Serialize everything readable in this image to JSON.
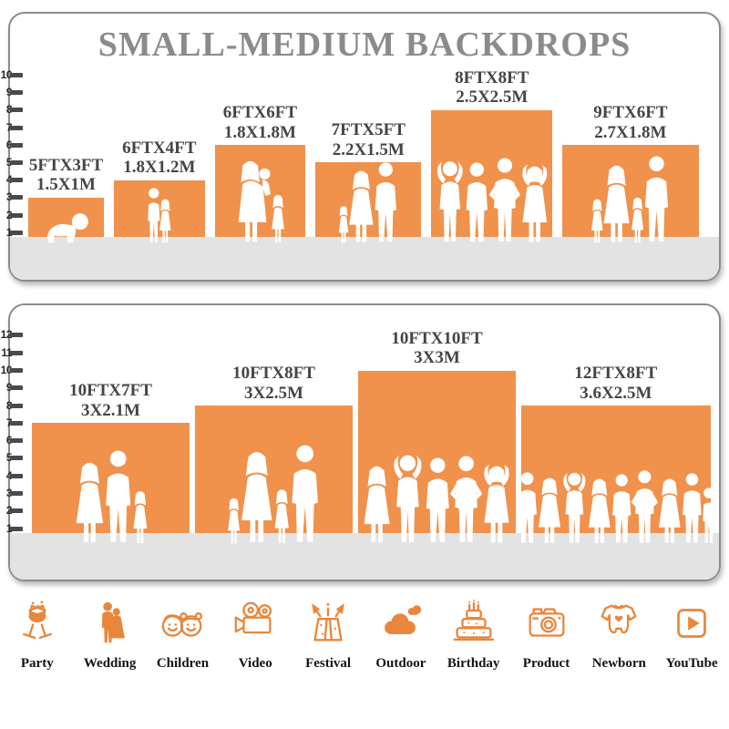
{
  "title": "SMALL-MEDIUM BACKDROPS",
  "colors": {
    "accent": "#F0924C",
    "icon": "#E8873B",
    "title": "#8B8B8B",
    "label": "#454545",
    "floor": "#E3E3E3",
    "border": "#8C8C8C",
    "tick": "#4A4A4A",
    "people": "#FFFFFF",
    "catlabel": "#141414"
  },
  "chart_data": [
    {
      "type": "bar",
      "name": "small-medium-backdrops",
      "title": "SMALL-MEDIUM BACKDROPS",
      "categories": [
        "5FTX3FT",
        "6FTX4FT",
        "6FTX6FT",
        "7FTX5FT",
        "8FTX8FT",
        "9FTX6FT"
      ],
      "meters": [
        "1.5X1M",
        "1.8X1.2M",
        "1.8X1.8M",
        "2.2X1.5M",
        "2.5X2.5M",
        "2.7X1.8M"
      ],
      "width_ft": [
        5,
        6,
        6,
        7,
        8,
        9
      ],
      "height_ft": [
        3,
        4,
        6,
        5,
        8,
        6
      ],
      "ylim": [
        0,
        10
      ],
      "yticks": [
        1,
        2,
        3,
        4,
        5,
        6,
        7,
        8,
        9,
        10
      ],
      "xlabel": "",
      "ylabel": "",
      "grid": false,
      "people": [
        [
          [
            "baby",
            36
          ]
        ],
        [
          [
            "boy",
            63
          ],
          [
            "girl",
            52
          ]
        ],
        [
          [
            "woman-baby",
            93
          ],
          [
            "girl",
            57
          ]
        ],
        [
          [
            "girl",
            44
          ],
          [
            "woman",
            82
          ],
          [
            "man",
            90
          ]
        ],
        [
          [
            "man-up",
            94
          ],
          [
            "man",
            90
          ],
          [
            "man-hips",
            95
          ],
          [
            "woman-up",
            89
          ]
        ],
        [
          [
            "girl",
            52
          ],
          [
            "woman",
            88
          ],
          [
            "girl",
            54
          ],
          [
            "man",
            97
          ]
        ]
      ]
    },
    {
      "type": "bar",
      "name": "medium-large-backdrops",
      "title": "",
      "categories": [
        "10FTX7FT",
        "10FTX8FT",
        "10FTX10FT",
        "12FTX8FT"
      ],
      "meters": [
        "3X2.1M",
        "3X2.5M",
        "3X3M",
        "3.6X2.5M"
      ],
      "width_ft": [
        10,
        10,
        10,
        12
      ],
      "height_ft": [
        7,
        8,
        10,
        8
      ],
      "ylim": [
        0,
        12
      ],
      "yticks": [
        1,
        2,
        3,
        4,
        5,
        6,
        7,
        8,
        9,
        10,
        11,
        12
      ],
      "xlabel": "",
      "ylabel": "",
      "grid": false,
      "people": [
        [
          [
            "woman",
            92
          ],
          [
            "man",
            104
          ],
          [
            "girl",
            62
          ]
        ],
        [
          [
            "girl",
            54
          ],
          [
            "woman",
            104
          ],
          [
            "girl",
            64
          ],
          [
            "man",
            110
          ]
        ],
        [
          [
            "woman",
            88
          ],
          [
            "man-up",
            102
          ],
          [
            "man",
            96
          ],
          [
            "man-hips",
            98
          ],
          [
            "woman-up",
            90
          ]
        ],
        [
          [
            "man",
            80
          ],
          [
            "woman",
            75
          ],
          [
            "man-up",
            82
          ],
          [
            "woman",
            74
          ],
          [
            "man",
            78
          ],
          [
            "man-hips",
            82
          ],
          [
            "woman",
            74
          ],
          [
            "man",
            79
          ],
          [
            "boy",
            64
          ]
        ]
      ]
    }
  ],
  "categories_row": [
    {
      "label": "Party",
      "icon": "party-icon"
    },
    {
      "label": "Wedding",
      "icon": "wedding-icon"
    },
    {
      "label": "Children",
      "icon": "children-icon"
    },
    {
      "label": "Video",
      "icon": "video-icon"
    },
    {
      "label": "Festival",
      "icon": "festival-icon"
    },
    {
      "label": "Outdoor",
      "icon": "outdoor-icon"
    },
    {
      "label": "Birthday",
      "icon": "birthday-icon"
    },
    {
      "label": "Product",
      "icon": "product-icon"
    },
    {
      "label": "Newborn",
      "icon": "newborn-icon"
    },
    {
      "label": "YouTube",
      "icon": "youtube-icon"
    }
  ]
}
